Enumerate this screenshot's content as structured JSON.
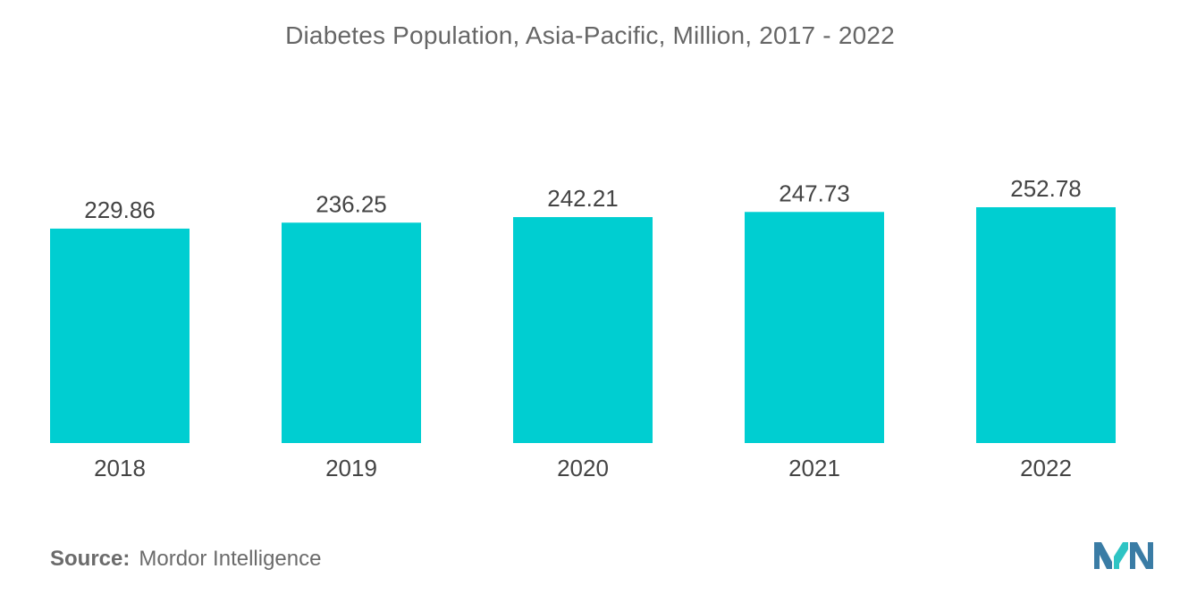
{
  "chart_data": {
    "type": "bar",
    "title": "Diabetes Population, Asia-Pacific, Million, 2017 - 2022",
    "categories": [
      "2018",
      "2019",
      "2020",
      "2021",
      "2022"
    ],
    "values": [
      229.86,
      236.25,
      242.21,
      247.73,
      252.78
    ],
    "value_labels": [
      "229.86",
      "236.25",
      "242.21",
      "247.73",
      "252.78"
    ],
    "xlabel": "",
    "ylabel": "",
    "ylim": [
      0,
      252.78
    ],
    "grid": false,
    "legend": "none",
    "bar_color": "#00CED1"
  },
  "footer": {
    "source_label": "Source:",
    "source_text": "Mordor Intelligence",
    "logo_color_dark": "#3a7ca5",
    "logo_color_light": "#2ec4c4"
  }
}
